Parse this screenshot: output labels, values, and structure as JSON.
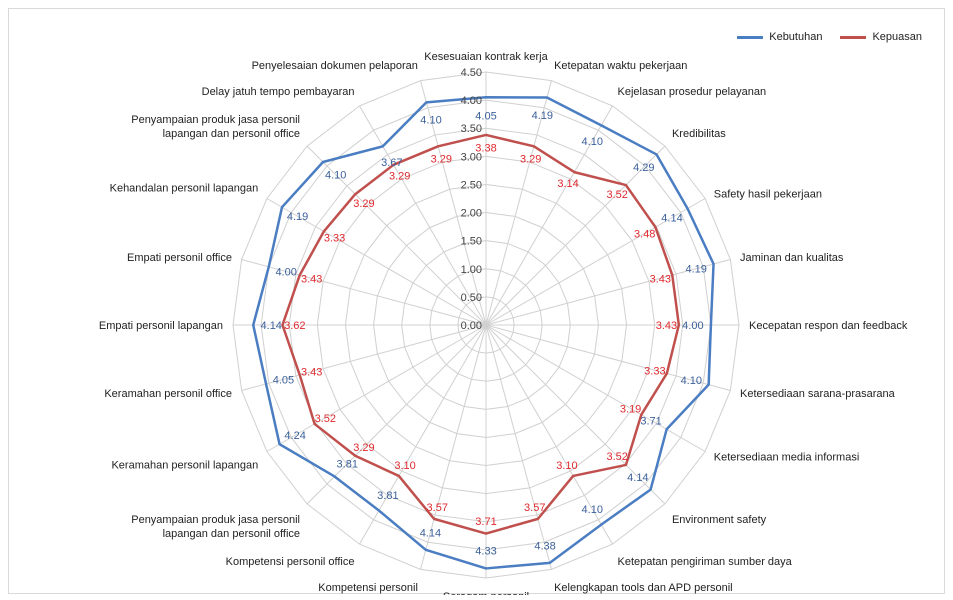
{
  "colors": {
    "series_a": "#4a7dc1",
    "series_b": "#c0504d",
    "grid": "#d0d0d0",
    "label_a": "#3a5f9a",
    "label_b": "#e0292e"
  },
  "chart_data": {
    "type": "radar",
    "title": "",
    "legend_position": "top-right",
    "grid": true,
    "rlim": [
      0,
      4.5
    ],
    "ticks": [
      "0.00",
      "0.50",
      "1.00",
      "1.50",
      "2.00",
      "2.50",
      "3.00",
      "3.50",
      "4.00",
      "4.50"
    ],
    "categories": [
      "Kesesuaian kontrak kerja",
      "Ketepatan waktu pekerjaan",
      "Kejelasan prosedur pelayanan",
      "Kredibilitas",
      "Safety hasil pekerjaan",
      "Jaminan dan kualitas",
      "Kecepatan respon dan feedback",
      "Ketersediaan sarana-prasarana",
      "Ketersediaan media informasi",
      "Environment safety",
      "Ketepatan pengiriman sumber daya",
      "Kelengkapan tools dan APD personil",
      "Seragam personil",
      "Kompetensi personil",
      "Kompetensi personil office",
      "Penyampaian produk jasa personil lapangan dan personil office",
      "Keramahan personil lapangan",
      "Keramahan personil office",
      "Empati personil lapangan",
      "Empati personil office",
      "Kehandalan personil lapangan",
      "Penyampaian produk jasa personil lapangan dan personil office",
      "Delay jatuh tempo pembayaran",
      "Penyelesaian dokumen pelaporan"
    ],
    "series": [
      {
        "name": "Kebutuhan",
        "values": [
          4.05,
          4.19,
          4.1,
          4.29,
          4.14,
          4.19,
          4.0,
          4.1,
          3.71,
          4.14,
          4.1,
          4.38,
          4.33,
          4.14,
          3.81,
          3.81,
          4.24,
          4.05,
          4.14,
          4.0,
          4.19,
          4.1,
          3.67,
          4.1
        ],
        "labels": [
          "4.05",
          "4.19",
          "4.10",
          "4.29",
          "4.14",
          "4.19",
          "4.00",
          "4.10",
          "3.71",
          "4.14",
          "4.10",
          "4.38",
          "4.33",
          "4.14",
          "3.81",
          "3.81",
          "4.24",
          "4.05",
          "4.14",
          "4.00",
          "4.19",
          "4.10",
          "3.67",
          "4.10"
        ]
      },
      {
        "name": "Kepuasan",
        "values": [
          3.38,
          3.29,
          3.14,
          3.52,
          3.48,
          3.43,
          3.43,
          3.33,
          3.19,
          3.52,
          3.1,
          3.57,
          3.71,
          3.57,
          3.1,
          3.29,
          3.52,
          3.43,
          3.62,
          3.43,
          3.33,
          3.29,
          3.29,
          3.29
        ],
        "labels": [
          "3.38",
          "3.29",
          "3.14",
          "3.52",
          "3.48",
          "3.43",
          "3.43",
          "3.33",
          "3.19",
          "3.52",
          "3.10",
          "3.57",
          "3.71",
          "3.57",
          "3.10",
          "3.29",
          "3.52",
          "3.43",
          "3.62",
          "3.43",
          "3.33",
          "3.29",
          "3.29",
          "3.29"
        ]
      }
    ]
  }
}
